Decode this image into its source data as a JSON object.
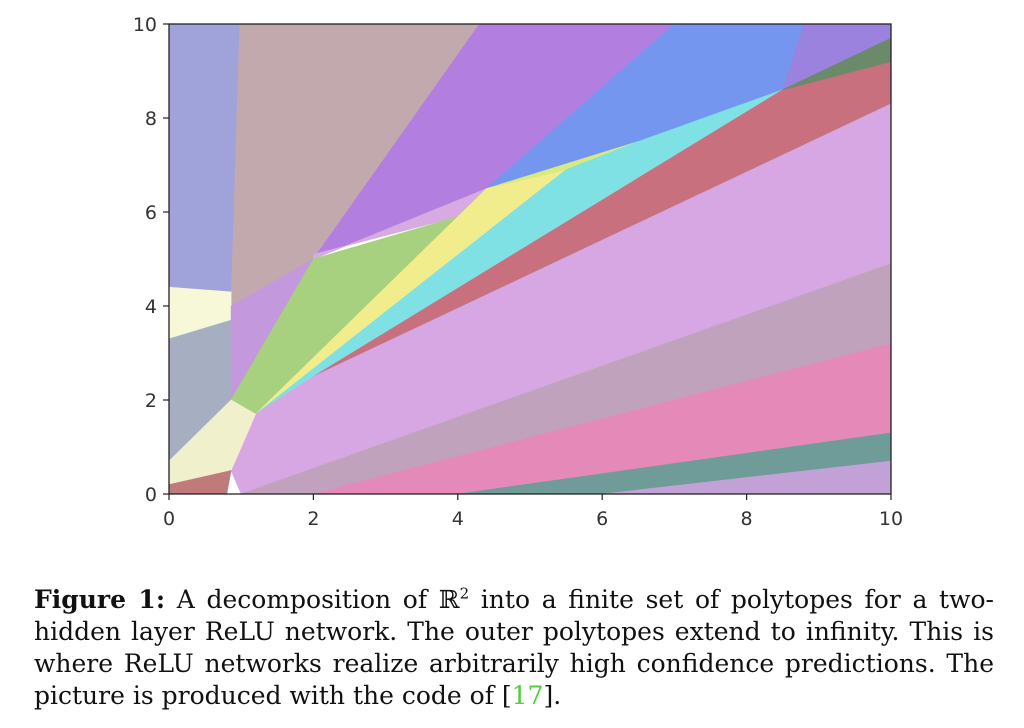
{
  "chart_data": {
    "type": "area",
    "title": "",
    "xlabel": "",
    "ylabel": "",
    "xlim": [
      0,
      10
    ],
    "ylim": [
      0,
      10
    ],
    "xticks": [
      0,
      2,
      4,
      6,
      8,
      10
    ],
    "yticks": [
      0,
      2,
      4,
      6,
      8,
      10
    ],
    "grid": false,
    "regions": [
      {
        "color": "#9fa3d9",
        "polygon": [
          [
            0,
            10
          ],
          [
            0.98,
            10
          ],
          [
            0.86,
            4.3
          ],
          [
            0,
            4.4
          ]
        ]
      },
      {
        "color": "#c2a9ad",
        "polygon": [
          [
            0.98,
            10
          ],
          [
            4.3,
            10
          ],
          [
            2.0,
            5.0
          ],
          [
            0.86,
            4.0
          ]
        ]
      },
      {
        "color": "#b27fe1",
        "polygon": [
          [
            4.3,
            10
          ],
          [
            7.0,
            10
          ],
          [
            4.4,
            6.5
          ],
          [
            2.0,
            5.0
          ]
        ]
      },
      {
        "color": "#7596ee",
        "polygon": [
          [
            7.0,
            10
          ],
          [
            8.8,
            10
          ],
          [
            8.5,
            8.6
          ],
          [
            6.5,
            7.5
          ],
          [
            4.4,
            6.5
          ]
        ]
      },
      {
        "color": "#9a82de",
        "polygon": [
          [
            8.8,
            10
          ],
          [
            10,
            10
          ],
          [
            10,
            9.7
          ],
          [
            8.5,
            8.6
          ]
        ]
      },
      {
        "color": "#f6f8d8",
        "polygon": [
          [
            0,
            4.4
          ],
          [
            0.86,
            4.3
          ],
          [
            0.86,
            3.7
          ],
          [
            0,
            3.3
          ]
        ]
      },
      {
        "color": "#a6aec2",
        "polygon": [
          [
            0,
            3.3
          ],
          [
            0.86,
            3.7
          ],
          [
            0.86,
            2.0
          ],
          [
            0,
            0.7
          ]
        ]
      },
      {
        "color": "#c398dd",
        "polygon": [
          [
            0.86,
            4.0
          ],
          [
            2.0,
            5.0
          ],
          [
            0.86,
            2.0
          ]
        ]
      },
      {
        "color": "#d7aae1",
        "polygon": [
          [
            2.0,
            5.0
          ],
          [
            4.4,
            6.5
          ],
          [
            4.0,
            5.9
          ],
          [
            2.0,
            5.1
          ]
        ]
      },
      {
        "color": "#a7d07f",
        "polygon": [
          [
            0.86,
            2.0
          ],
          [
            2.0,
            5.0
          ],
          [
            4.0,
            5.9
          ],
          [
            1.2,
            1.7
          ]
        ]
      },
      {
        "color": "#f2ed8c",
        "polygon": [
          [
            1.2,
            1.7
          ],
          [
            4.0,
            5.9
          ],
          [
            4.4,
            6.5
          ],
          [
            5.5,
            6.9
          ]
        ]
      },
      {
        "color": "#d8ea7e",
        "polygon": [
          [
            4.4,
            6.5
          ],
          [
            6.5,
            7.5
          ],
          [
            5.5,
            6.9
          ]
        ]
      },
      {
        "color": "#7fe1e4",
        "polygon": [
          [
            1.2,
            1.7
          ],
          [
            5.5,
            6.9
          ],
          [
            6.5,
            7.5
          ],
          [
            8.5,
            8.6
          ],
          [
            2.0,
            2.5
          ]
        ]
      },
      {
        "color": "#c8707e",
        "polygon": [
          [
            2.0,
            2.5
          ],
          [
            8.5,
            8.6
          ],
          [
            10,
            9.2
          ],
          [
            10,
            8.3
          ]
        ]
      },
      {
        "color": "#6b8a6a",
        "polygon": [
          [
            8.5,
            8.6
          ],
          [
            10,
            9.7
          ],
          [
            10,
            9.2
          ]
        ]
      },
      {
        "color": "#d6a7e3",
        "polygon": [
          [
            0.86,
            0.5
          ],
          [
            1.2,
            1.7
          ],
          [
            2.0,
            2.5
          ],
          [
            10,
            8.3
          ],
          [
            10,
            4.9
          ],
          [
            1.0,
            0.0
          ]
        ]
      },
      {
        "color": "#f0f0cc",
        "polygon": [
          [
            0,
            0.7
          ],
          [
            0.86,
            2.0
          ],
          [
            1.2,
            1.7
          ],
          [
            0.86,
            0.5
          ],
          [
            0,
            0.2
          ]
        ]
      },
      {
        "color": "#c07a7a",
        "polygon": [
          [
            0,
            0
          ],
          [
            0.8,
            0
          ],
          [
            0.86,
            0.5
          ],
          [
            0,
            0.2
          ]
        ]
      },
      {
        "color": "#c0a2bc",
        "polygon": [
          [
            1.0,
            0.0
          ],
          [
            10,
            4.9
          ],
          [
            10,
            3.2
          ],
          [
            2.0,
            0.0
          ]
        ]
      },
      {
        "color": "#e58ab8",
        "polygon": [
          [
            2.0,
            0.0
          ],
          [
            10,
            3.2
          ],
          [
            10,
            1.3
          ],
          [
            4.0,
            0.0
          ]
        ]
      },
      {
        "color": "#6f9c99",
        "polygon": [
          [
            4.0,
            0.0
          ],
          [
            10,
            1.3
          ],
          [
            10,
            0.7
          ],
          [
            6.0,
            0.0
          ]
        ]
      },
      {
        "color": "#c2a1d6",
        "polygon": [
          [
            6.0,
            0.0
          ],
          [
            10,
            0.7
          ],
          [
            10,
            0.0
          ]
        ]
      }
    ]
  },
  "caption": {
    "label": "Figure 1:",
    "text_before_sup": "A decomposition of ℝ",
    "sup": "2",
    "text_after_sup": " into a finite set of polytopes for a two-hidden layer ReLU network. The outer polytopes extend to infinity. This is where ReLU networks realize arbitrarily high confidence predictions. The picture is produced with the code of [",
    "citation": "17",
    "text_end": "]."
  }
}
